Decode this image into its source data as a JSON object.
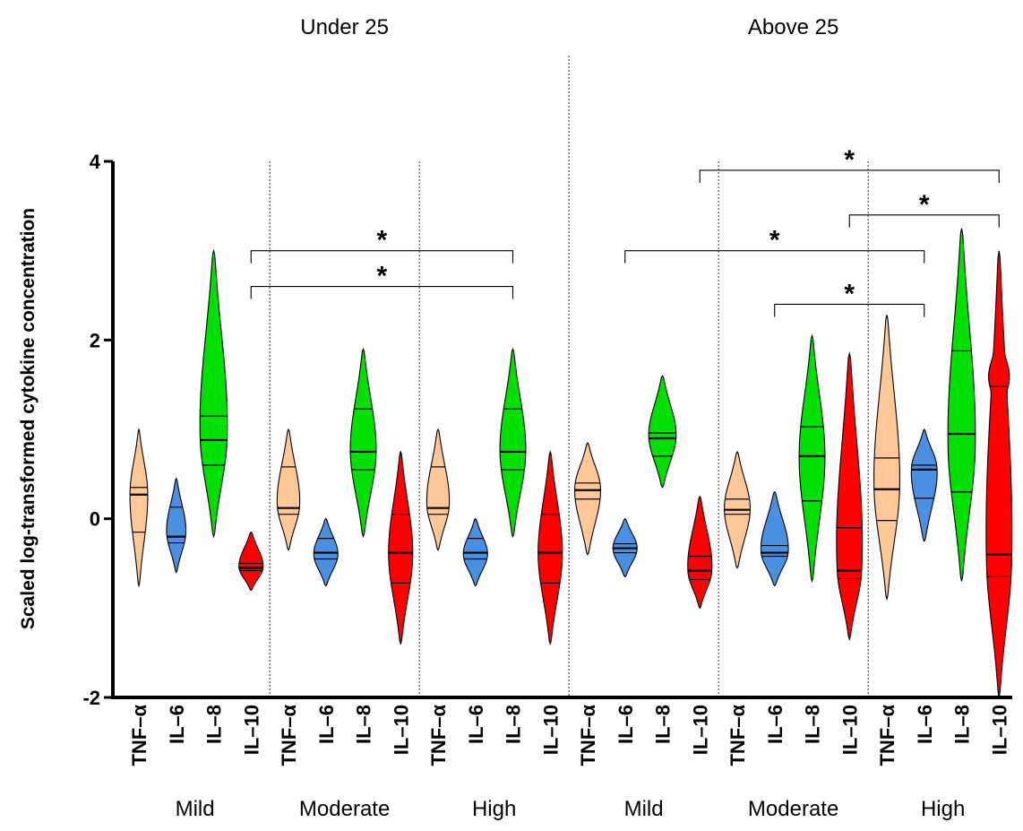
{
  "chart_data": {
    "type": "violin",
    "ylabel": "Scaled log-transformed cytokine concentration",
    "ylim": [
      -2,
      4
    ],
    "yticks": [
      {
        "v": 4,
        "label": "4"
      },
      {
        "v": 2,
        "label": "2"
      },
      {
        "v": 0,
        "label": "0"
      },
      {
        "v": -2,
        "label": "-2"
      }
    ],
    "colors": {
      "TNF–α": "#FFC896",
      "IL–6": "#4A90E2",
      "IL–8": "#00E000",
      "IL–10": "#FF0000"
    },
    "age_groups": [
      {
        "label": "Under 25",
        "first_col": 0,
        "last_col": 11
      },
      {
        "label": "Above 25",
        "first_col": 12,
        "last_col": 23
      }
    ],
    "severity_groups": [
      {
        "label": "Mild",
        "first_col": 0,
        "last_col": 3
      },
      {
        "label": "Moderate",
        "first_col": 4,
        "last_col": 7
      },
      {
        "label": "High",
        "first_col": 8,
        "last_col": 11
      },
      {
        "label": "Mild",
        "first_col": 12,
        "last_col": 15
      },
      {
        "label": "Moderate",
        "first_col": 16,
        "last_col": 19
      },
      {
        "label": "High",
        "first_col": 20,
        "last_col": 23
      }
    ],
    "violins": [
      {
        "label": "TNF–α",
        "min": -0.75,
        "max": 1.0,
        "q1": -0.15,
        "median": 0.27,
        "q3": 0.35,
        "mode": 0.3,
        "width": 0.55
      },
      {
        "label": "IL–6",
        "min": -0.6,
        "max": 0.45,
        "q1": -0.27,
        "median": -0.2,
        "q3": 0.13,
        "mode": -0.15,
        "width": 0.6
      },
      {
        "label": "IL–8",
        "min": -0.2,
        "max": 3.0,
        "q1": 0.6,
        "median": 0.88,
        "q3": 1.15,
        "mode": 0.9,
        "width": 0.85,
        "bumps": [
          [
            2.4,
            0.35
          ]
        ]
      },
      {
        "label": "IL–10",
        "min": -0.8,
        "max": -0.15,
        "q1": -0.58,
        "median": -0.55,
        "q3": -0.5,
        "mode": -0.55,
        "width": 0.75
      },
      {
        "label": "TNF–α",
        "min": -0.35,
        "max": 1.0,
        "q1": 0.05,
        "median": 0.12,
        "q3": 0.58,
        "mode": 0.15,
        "width": 0.7
      },
      {
        "label": "IL–6",
        "min": -0.75,
        "max": 0.0,
        "q1": -0.45,
        "median": -0.38,
        "q3": -0.22,
        "mode": -0.4,
        "width": 0.75
      },
      {
        "label": "IL–8",
        "min": -0.2,
        "max": 1.9,
        "q1": 0.55,
        "median": 0.75,
        "q3": 1.23,
        "mode": 0.75,
        "width": 0.8
      },
      {
        "label": "IL–10",
        "min": -1.4,
        "max": 0.75,
        "q1": -0.72,
        "median": -0.38,
        "q3": 0.05,
        "mode": -0.4,
        "width": 0.75
      },
      {
        "label": "TNF–α",
        "min": -0.35,
        "max": 1.0,
        "q1": 0.05,
        "median": 0.12,
        "q3": 0.58,
        "mode": 0.15,
        "width": 0.7
      },
      {
        "label": "IL–6",
        "min": -0.75,
        "max": 0.0,
        "q1": -0.45,
        "median": -0.38,
        "q3": -0.22,
        "mode": -0.4,
        "width": 0.75
      },
      {
        "label": "IL–8",
        "min": -0.2,
        "max": 1.9,
        "q1": 0.55,
        "median": 0.75,
        "q3": 1.23,
        "mode": 0.75,
        "width": 0.8
      },
      {
        "label": "IL–10",
        "min": -1.4,
        "max": 0.75,
        "q1": -0.72,
        "median": -0.38,
        "q3": 0.05,
        "mode": -0.4,
        "width": 0.75
      },
      {
        "label": "TNF–α",
        "min": -0.4,
        "max": 0.85,
        "q1": 0.22,
        "median": 0.32,
        "q3": 0.4,
        "mode": 0.35,
        "width": 0.8
      },
      {
        "label": "IL–6",
        "min": -0.65,
        "max": 0.0,
        "q1": -0.38,
        "median": -0.33,
        "q3": -0.28,
        "mode": -0.33,
        "width": 0.75
      },
      {
        "label": "IL–8",
        "min": 0.35,
        "max": 1.6,
        "q1": 0.7,
        "median": 0.9,
        "q3": 0.96,
        "mode": 0.93,
        "width": 0.85
      },
      {
        "label": "IL–10",
        "min": -1.0,
        "max": 0.25,
        "q1": -0.68,
        "median": -0.58,
        "q3": -0.42,
        "mode": -0.6,
        "width": 0.75
      },
      {
        "label": "TNF–α",
        "min": -0.55,
        "max": 0.75,
        "q1": 0.05,
        "median": 0.1,
        "q3": 0.22,
        "mode": 0.12,
        "width": 0.8
      },
      {
        "label": "IL–6",
        "min": -0.75,
        "max": 0.3,
        "q1": -0.42,
        "median": -0.38,
        "q3": -0.3,
        "mode": -0.38,
        "width": 0.85
      },
      {
        "label": "IL–8",
        "min": -0.7,
        "max": 2.05,
        "q1": 0.2,
        "median": 0.7,
        "q3": 1.03,
        "mode": 0.7,
        "width": 0.8
      },
      {
        "label": "IL–10",
        "min": -1.35,
        "max": 1.85,
        "q1": -0.67,
        "median": -0.58,
        "q3": -0.1,
        "mode": -0.6,
        "width": 0.8,
        "bumps": [
          [
            1.0,
            0.28
          ]
        ]
      },
      {
        "label": "TNF–α",
        "min": -0.9,
        "max": 2.28,
        "q1": -0.02,
        "median": 0.33,
        "q3": 0.68,
        "mode": 0.35,
        "width": 0.8
      },
      {
        "label": "IL–6",
        "min": -0.25,
        "max": 1.0,
        "q1": 0.23,
        "median": 0.55,
        "q3": 0.6,
        "mode": 0.58,
        "width": 0.8
      },
      {
        "label": "IL–8",
        "min": -0.7,
        "max": 3.25,
        "q1": 0.3,
        "median": 0.95,
        "q3": 1.88,
        "mode": 0.8,
        "width": 0.85
      },
      {
        "label": "IL–10",
        "min": -2.0,
        "max": 3.0,
        "q1": -0.65,
        "median": -0.4,
        "q3": 1.48,
        "mode": -0.5,
        "width": 0.8,
        "bumps": [
          [
            1.6,
            0.85
          ]
        ]
      }
    ],
    "significance": [
      {
        "from": 3,
        "to": 10,
        "y": 3.0,
        "label": "*"
      },
      {
        "from": 3,
        "to": 10,
        "y": 2.6,
        "label": "*"
      },
      {
        "from": 13,
        "to": 21,
        "y": 3.0,
        "label": "*"
      },
      {
        "from": 17,
        "to": 21,
        "y": 2.4,
        "label": "*"
      },
      {
        "from": 15,
        "to": 23,
        "y": 3.9,
        "label": "*"
      },
      {
        "from": 19,
        "to": 23,
        "y": 3.4,
        "label": "*"
      }
    ]
  }
}
